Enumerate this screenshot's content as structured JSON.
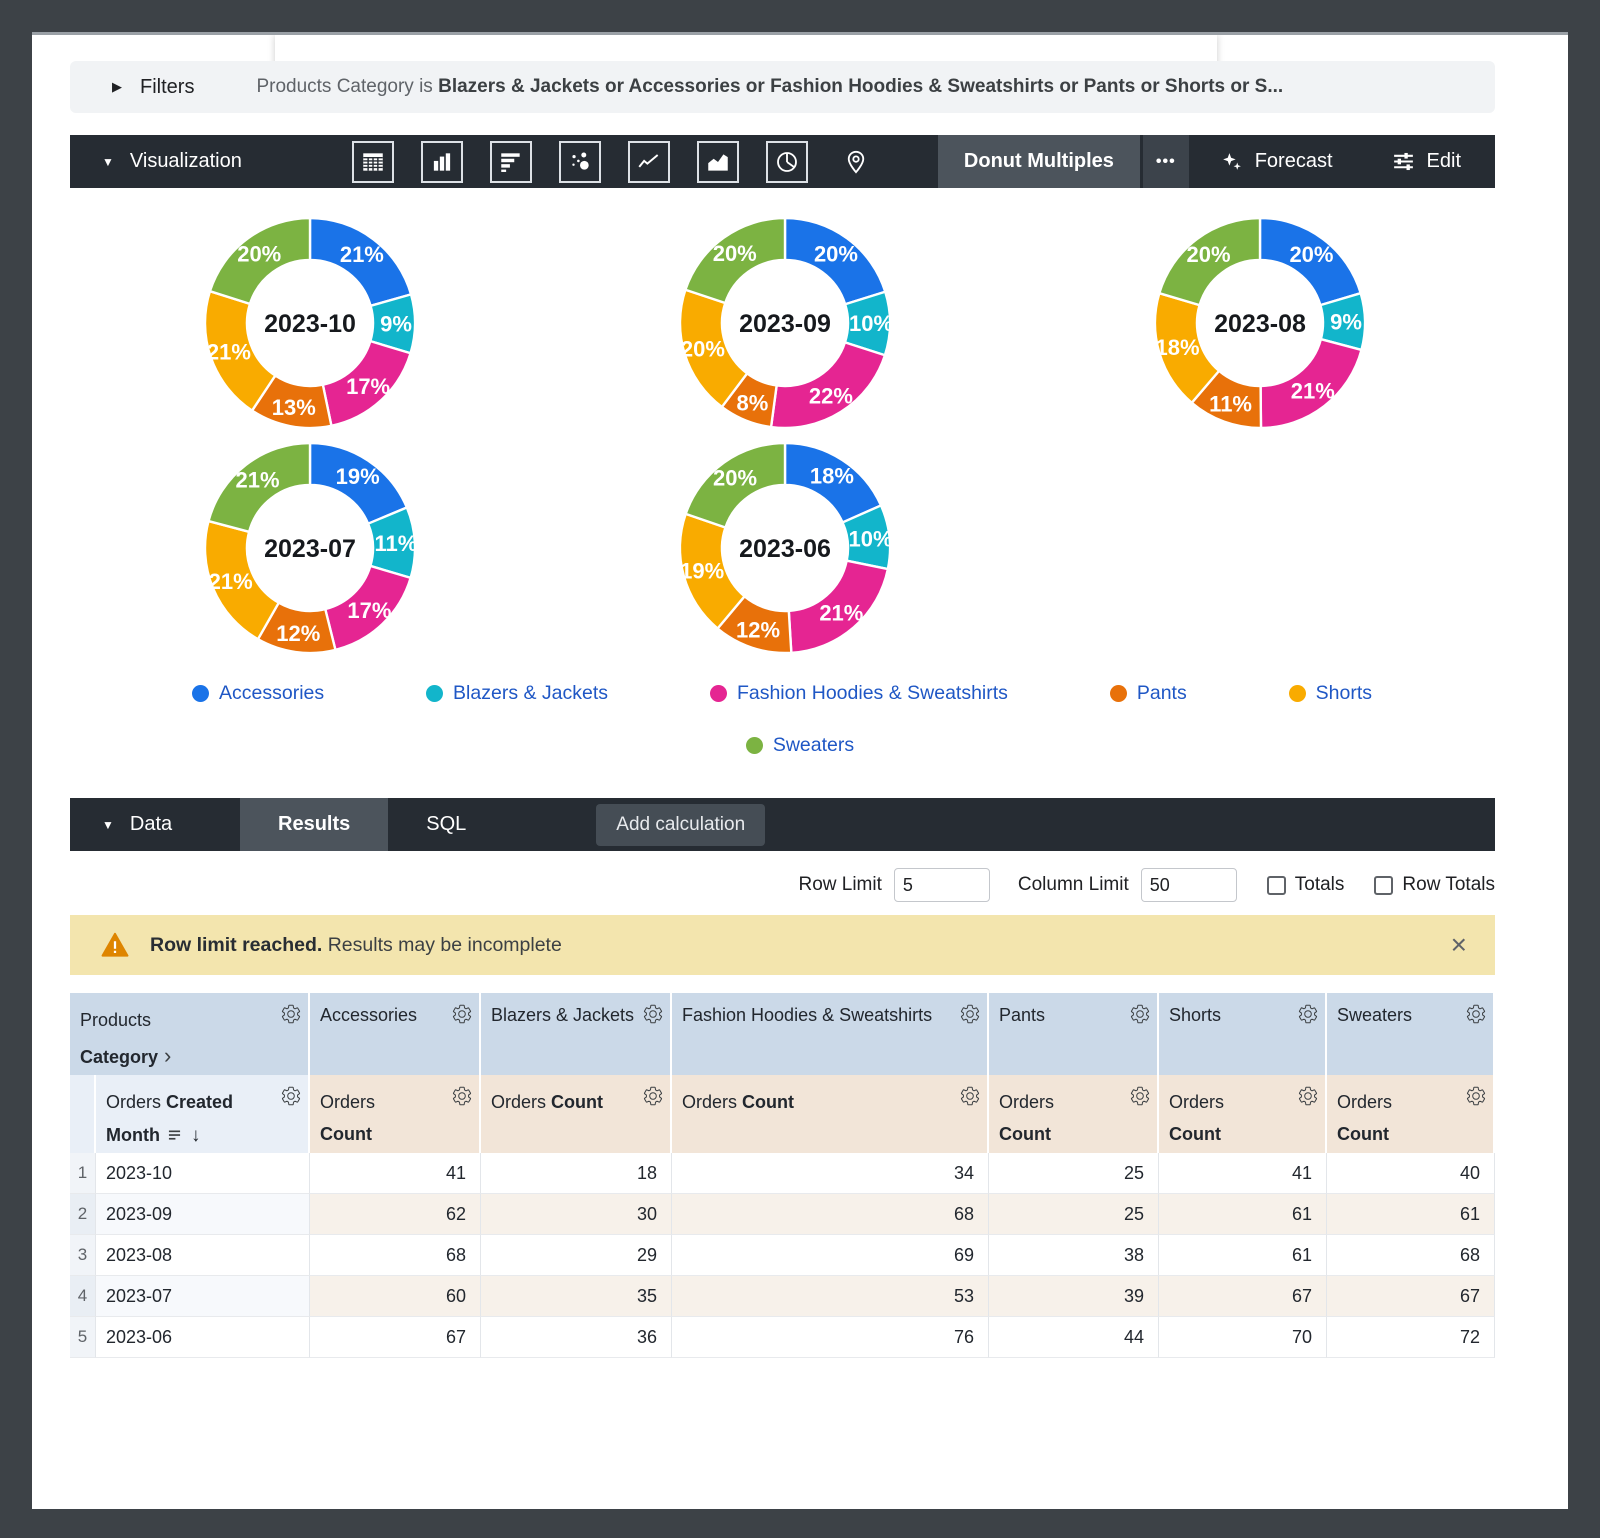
{
  "icons": {
    "filters_expand": "▶",
    "section_collapse": "▼",
    "close": "×",
    "sort_arrow": "↓",
    "drill_chevron": "›",
    "more": "•••"
  },
  "filters_bar": {
    "label": "Filters",
    "condition_prefix": "Products Category is",
    "condition_values": "Blazers & Jackets or Accessories or Fashion Hoodies & Sweatshirts or Pants or Shorts or S..."
  },
  "viz_bar": {
    "section_label": "Visualization",
    "icon_names": [
      "table-icon",
      "column-chart-icon",
      "bar-chart-icon",
      "scatter-plot-icon",
      "line-chart-icon",
      "area-chart-icon",
      "pie-chart-icon",
      "map-pin-icon"
    ],
    "selected_viz": "Donut Multiples",
    "forecast_label": "Forecast",
    "edit_label": "Edit"
  },
  "chart_data": {
    "type": "pie",
    "subtype": "donut-multiples",
    "series_names": [
      "Accessories",
      "Blazers & Jackets",
      "Fashion Hoodies & Sweatshirts",
      "Pants",
      "Shorts",
      "Sweaters"
    ],
    "colors": [
      "#1A73E8",
      "#12B5CB",
      "#E52592",
      "#E8710A",
      "#F9AB00",
      "#7CB342"
    ],
    "legend_position": "bottom",
    "donuts": [
      {
        "title": "2023-10",
        "values": [
          41,
          18,
          34,
          25,
          41,
          40
        ],
        "percent_labels": [
          "21%",
          "9%",
          "17%",
          "13%",
          "21%",
          "20%"
        ]
      },
      {
        "title": "2023-09",
        "values": [
          62,
          30,
          68,
          25,
          61,
          61
        ],
        "percent_labels": [
          "20%",
          "10%",
          "22%",
          "8%",
          "20%",
          "20%"
        ]
      },
      {
        "title": "2023-08",
        "values": [
          68,
          29,
          69,
          38,
          61,
          68
        ],
        "percent_labels": [
          "20%",
          "9%",
          "21%",
          "11%",
          "18%",
          "20%"
        ]
      },
      {
        "title": "2023-07",
        "values": [
          60,
          35,
          53,
          39,
          67,
          67
        ],
        "percent_labels": [
          "19%",
          "11%",
          "17%",
          "12%",
          "21%",
          "21%"
        ]
      },
      {
        "title": "2023-06",
        "values": [
          67,
          36,
          76,
          44,
          70,
          72
        ],
        "percent_labels": [
          "18%",
          "10%",
          "21%",
          "12%",
          "19%",
          "20%"
        ]
      }
    ]
  },
  "data_bar": {
    "section_label": "Data",
    "tabs": [
      "Results",
      "SQL"
    ],
    "active_tab": "Results",
    "add_calculation_label": "Add calculation"
  },
  "limits": {
    "row_limit_label": "Row Limit",
    "row_limit_value": "5",
    "column_limit_label": "Column Limit",
    "column_limit_value": "50",
    "totals_label": "Totals",
    "row_totals_label": "Row Totals",
    "totals_checked": false,
    "row_totals_checked": false
  },
  "banner": {
    "bold_text": "Row limit reached.",
    "text": "Results may be incomplete"
  },
  "table": {
    "dimension_header": {
      "view": "Products",
      "field": "Category"
    },
    "dim_time_header": {
      "view": "Orders",
      "field": "Created Month"
    },
    "measure_header": {
      "view": "Orders",
      "field": "Count"
    },
    "pivot_columns": [
      "Accessories",
      "Blazers & Jackets",
      "Fashion Hoodies & Sweatshirts",
      "Pants",
      "Shorts",
      "Sweaters"
    ],
    "rows": [
      {
        "index": "1",
        "month": "2023-10",
        "values": [
          41,
          18,
          34,
          25,
          41,
          40
        ]
      },
      {
        "index": "2",
        "month": "2023-09",
        "values": [
          62,
          30,
          68,
          25,
          61,
          61
        ]
      },
      {
        "index": "3",
        "month": "2023-08",
        "values": [
          68,
          29,
          69,
          38,
          61,
          68
        ]
      },
      {
        "index": "4",
        "month": "2023-07",
        "values": [
          60,
          35,
          53,
          39,
          67,
          67
        ]
      },
      {
        "index": "5",
        "month": "2023-06",
        "values": [
          67,
          36,
          76,
          44,
          70,
          72
        ]
      }
    ]
  }
}
